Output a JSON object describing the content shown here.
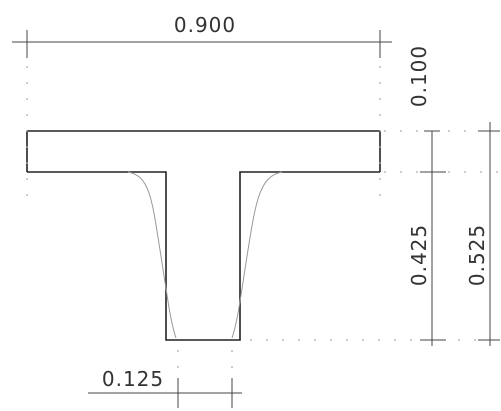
{
  "drawing": {
    "dimensions": {
      "width": "0.900",
      "flange_depth": "0.100",
      "web_depth": "0.425",
      "total_depth": "0.525",
      "web_width": "0.125"
    }
  }
}
